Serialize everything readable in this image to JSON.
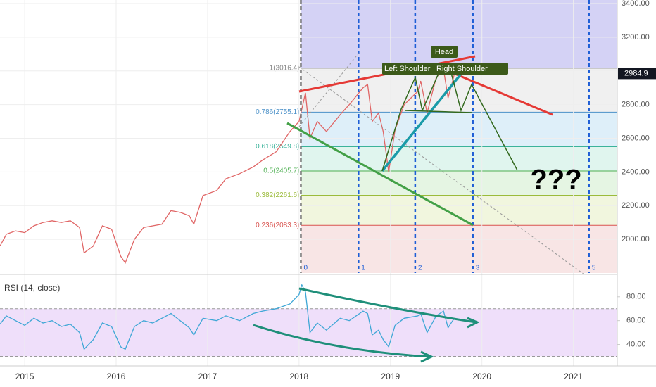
{
  "chart_data": [
    {
      "type": "line",
      "color": "#e06666",
      "x": [
        2014.73,
        2014.8,
        2014.9,
        2015.0,
        2015.1,
        2015.2,
        2015.3,
        2015.4,
        2015.5,
        2015.6,
        2015.65,
        2015.75,
        2015.85,
        2015.95,
        2016.05,
        2016.1,
        2016.2,
        2016.3,
        2016.4,
        2016.5,
        2016.6,
        2016.7,
        2016.8,
        2016.85,
        2016.95,
        2017.1,
        2017.2,
        2017.35,
        2017.5,
        2017.6,
        2017.75,
        2017.9,
        2018.0,
        2018.07,
        2018.12,
        2018.2,
        2018.3,
        2018.45,
        2018.55,
        2018.7,
        2018.75,
        2018.8,
        2018.87,
        2018.92,
        2018.98,
        2019.05,
        2019.15,
        2019.3,
        2019.33,
        2019.4,
        2019.5,
        2019.58,
        2019.63,
        2019.68,
        2019.7
      ],
      "values": [
        1960,
        2030,
        2050,
        2040,
        2080,
        2100,
        2110,
        2100,
        2110,
        2070,
        1920,
        1960,
        2080,
        2060,
        1900,
        1860,
        2000,
        2070,
        2080,
        2090,
        2170,
        2160,
        2140,
        2090,
        2260,
        2290,
        2360,
        2390,
        2430,
        2470,
        2520,
        2640,
        2700,
        2870,
        2600,
        2700,
        2640,
        2740,
        2800,
        2900,
        2920,
        2700,
        2750,
        2640,
        2400,
        2650,
        2800,
        2880,
        2940,
        2750,
        2960,
        3010,
        2840,
        2940,
        2985
      ],
      "xlim": [
        2014.73,
        2021.48
      ],
      "xticks": [
        2015,
        2016,
        2017,
        2018,
        2019,
        2020,
        2021
      ],
      "ylim": [
        1800,
        3421
      ],
      "yticks": [
        {
          "value": 2000,
          "label": "2000.00"
        },
        {
          "value": 2200,
          "label": "2200.00"
        },
        {
          "value": 2400,
          "label": "2400.00"
        },
        {
          "value": 2600,
          "label": "2600.00"
        },
        {
          "value": 2800,
          "label": "2800.00"
        },
        {
          "value": 3000,
          "label": "3000.00"
        },
        {
          "value": 3200,
          "label": "3200.00"
        },
        {
          "value": 3400,
          "label": "3400.00"
        }
      ],
      "last_price": 2984.9,
      "fib_levels": [
        {
          "label": "1(3016.4)",
          "value": 3016.4,
          "color": "#888888",
          "fill": "#ececec"
        },
        {
          "label": "0.786(2755.1)",
          "value": 2755.1,
          "color": "#4a90c8",
          "fill": "#d6ebf7"
        },
        {
          "label": "0.618(2549.8)",
          "value": 2549.8,
          "color": "#3bb39a",
          "fill": "#d8f2ea"
        },
        {
          "label": "0.5(2405.7)",
          "value": 2405.7,
          "color": "#4caf50",
          "fill": "#dff3dc"
        },
        {
          "label": "0.382(2261.6)",
          "value": 2261.6,
          "color": "#9bbb3b",
          "fill": "#eef4d6"
        },
        {
          "label": "0.236(2083.3)",
          "value": 2083.3,
          "color": "#d9534f",
          "fill": "#f6dede"
        }
      ],
      "time_zones": [
        {
          "label": "0",
          "x": 2018.02
        },
        {
          "label": "1",
          "x": 2018.65
        },
        {
          "label": "2",
          "x": 2019.27
        },
        {
          "label": "3",
          "x": 2019.9
        },
        {
          "label": "5",
          "x": 2021.17
        }
      ],
      "annotations": {
        "head": "Head",
        "left_shoulder": "Left Shoulder",
        "right_shoulder": "Right Shoulder",
        "question": "???"
      }
    },
    {
      "type": "line",
      "title": "RSI (14, close)",
      "color": "#3fa7d6",
      "band_color": "#efdffa",
      "x": [
        2014.73,
        2014.8,
        2014.9,
        2015.0,
        2015.1,
        2015.2,
        2015.3,
        2015.4,
        2015.5,
        2015.6,
        2015.65,
        2015.75,
        2015.85,
        2015.95,
        2016.05,
        2016.1,
        2016.2,
        2016.3,
        2016.4,
        2016.5,
        2016.6,
        2016.7,
        2016.8,
        2016.85,
        2016.95,
        2017.1,
        2017.2,
        2017.35,
        2017.5,
        2017.6,
        2017.75,
        2017.9,
        2018.0,
        2018.03,
        2018.07,
        2018.12,
        2018.2,
        2018.3,
        2018.45,
        2018.55,
        2018.7,
        2018.75,
        2018.8,
        2018.87,
        2018.92,
        2018.98,
        2019.05,
        2019.15,
        2019.3,
        2019.33,
        2019.4,
        2019.5,
        2019.58,
        2019.63,
        2019.68,
        2019.7
      ],
      "values": [
        57,
        64,
        60,
        56,
        62,
        58,
        60,
        55,
        57,
        50,
        36,
        44,
        58,
        55,
        38,
        36,
        55,
        60,
        58,
        62,
        66,
        60,
        54,
        48,
        62,
        60,
        64,
        60,
        66,
        68,
        70,
        74,
        82,
        90,
        84,
        50,
        58,
        52,
        62,
        60,
        68,
        66,
        48,
        52,
        44,
        38,
        56,
        62,
        64,
        66,
        50,
        64,
        68,
        54,
        60,
        62
      ],
      "xlim": [
        2014.73,
        2021.48
      ],
      "ylim": [
        22,
        97
      ],
      "yticks": [
        {
          "value": 40,
          "label": "40.00"
        },
        {
          "value": 60,
          "label": "60.00"
        },
        {
          "value": 80,
          "label": "80.00"
        }
      ],
      "band": [
        30,
        70
      ]
    }
  ]
}
